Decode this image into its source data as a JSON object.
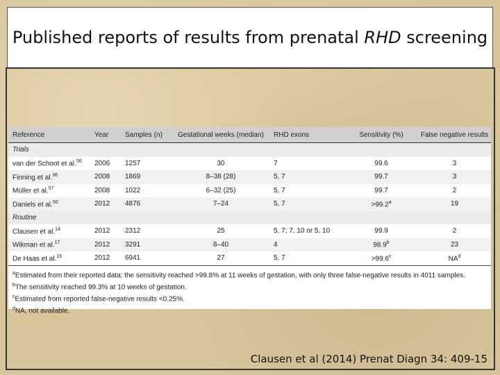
{
  "title": [
    "Published reports of results from prenatal ",
    "RHD",
    " screening"
  ],
  "table": {
    "headers": [
      "Reference",
      "Year",
      "Samples (n)",
      "Gestational weeks (median)",
      "RHD exons",
      "Sensitivity (%)",
      "False negative results"
    ],
    "sections": [
      {
        "label": "Trials",
        "rows": [
          [
            {
              "text": "van der Schoot et al.",
              "sup": "56"
            },
            "2006",
            "1257",
            "30",
            "7",
            "99.6",
            "3"
          ],
          [
            {
              "text": "Finning et al.",
              "sup": "36"
            },
            "2008",
            "1869",
            "8–38 (28)",
            "5, 7",
            "99.7",
            "3"
          ],
          [
            {
              "text": "Müller et al.",
              "sup": "57"
            },
            "2008",
            "1022",
            "6–32 (25)",
            "5, 7",
            "99.7",
            "2"
          ],
          [
            {
              "text": "Daniels et al.",
              "sup": "50"
            },
            "2012",
            "4876",
            "7–24",
            "5, 7",
            {
              "text": ">99.2",
              "sup": "a"
            },
            "19"
          ]
        ]
      },
      {
        "label": "Routine",
        "rows": [
          [
            {
              "text": "Clausen et al.",
              "sup": "14"
            },
            "2012",
            "2312",
            "25",
            "5, 7; 7, 10 or 5, 10",
            "99.9",
            "2"
          ],
          [
            {
              "text": "Wikman et al.",
              "sup": "17"
            },
            "2012",
            "3291",
            "8–40",
            "4",
            {
              "text": "98.9",
              "sup": "b"
            },
            "23"
          ],
          [
            {
              "text": "De Haas et al.",
              "sup": "16"
            },
            "2012",
            "6941",
            "27",
            "5, 7",
            {
              "text": ">99.6",
              "sup": "c"
            },
            {
              "text": "NA",
              "sup": "d"
            }
          ]
        ]
      }
    ],
    "footnotes": [
      {
        "mark": "a",
        "text": "Estimated from their reported data; the sensitivity reached >99.8% at 11 weeks of gestation, with only three false-negative results in 4011 samples."
      },
      {
        "mark": "b",
        "text": "The sensitivity reached 99.3% at 10 weeks of gestation."
      },
      {
        "mark": "c",
        "text": "Estimated from reported false-negative results <0.25%."
      },
      {
        "mark": "d",
        "text": "NA, not available."
      }
    ]
  },
  "citation": "Clausen et al (2014) Prenat Diagn 34: 409-15"
}
